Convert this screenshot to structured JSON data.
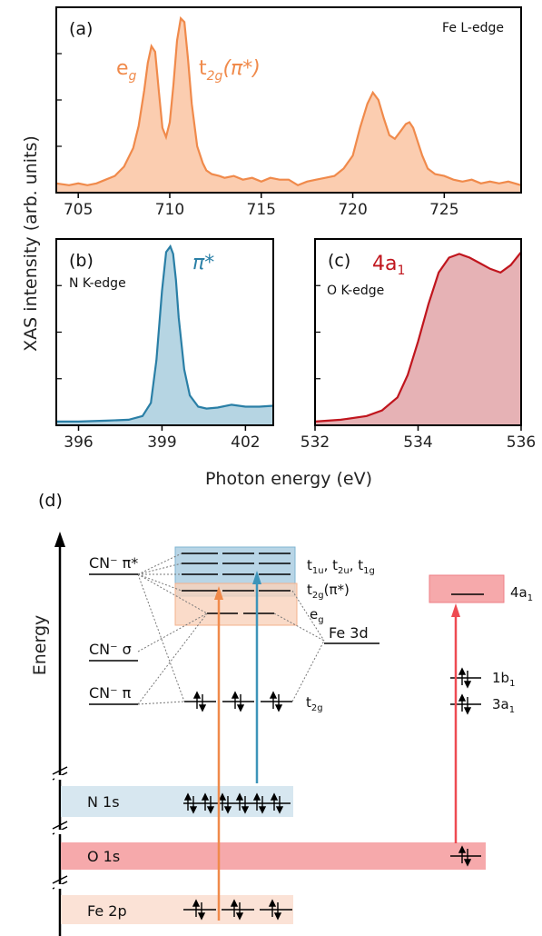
{
  "chart_data": [
    {
      "type": "line",
      "panel_label": "(a)",
      "edge_label": "Fe L-edge",
      "xlim": [
        703.8,
        729.2
      ],
      "ylim": [
        0,
        1.0
      ],
      "xticks": [
        705,
        710,
        715,
        720,
        725
      ],
      "color": "#f08a4b",
      "fill": "#fbcdb0",
      "peak_labels": [
        {
          "text": "e",
          "sub": "g",
          "suffix": ""
        },
        {
          "text": "t",
          "sub": "2g",
          "suffix": "(π*)"
        }
      ],
      "series": [
        {
          "x": [
            703.8,
            704.5,
            705,
            705.5,
            706,
            706.5,
            707,
            707.5,
            708,
            708.3,
            708.6,
            708.8,
            709,
            709.2,
            709.4,
            709.6,
            709.8,
            710,
            710.2,
            710.4,
            710.6,
            710.8,
            711,
            711.2,
            711.5,
            711.8,
            712,
            712.3,
            712.7,
            713,
            713.5,
            714,
            714.5,
            715,
            715.5,
            716,
            716.5,
            717,
            717.5,
            718,
            718.5,
            719,
            719.5,
            720,
            720.4,
            720.8,
            721.1,
            721.4,
            721.7,
            722,
            722.3,
            722.6,
            722.9,
            723.1,
            723.3,
            723.5,
            723.8,
            724.1,
            724.5,
            725,
            725.5,
            726,
            726.5,
            727,
            727.5,
            728,
            728.5,
            729.2
          ],
          "y": [
            0.05,
            0.04,
            0.05,
            0.04,
            0.05,
            0.07,
            0.09,
            0.14,
            0.24,
            0.36,
            0.55,
            0.7,
            0.79,
            0.76,
            0.55,
            0.35,
            0.3,
            0.38,
            0.58,
            0.82,
            0.94,
            0.92,
            0.72,
            0.48,
            0.25,
            0.16,
            0.12,
            0.1,
            0.09,
            0.08,
            0.09,
            0.07,
            0.08,
            0.06,
            0.08,
            0.07,
            0.07,
            0.04,
            0.06,
            0.07,
            0.08,
            0.09,
            0.13,
            0.2,
            0.35,
            0.48,
            0.54,
            0.5,
            0.4,
            0.31,
            0.29,
            0.33,
            0.37,
            0.38,
            0.35,
            0.29,
            0.2,
            0.13,
            0.1,
            0.09,
            0.07,
            0.06,
            0.07,
            0.05,
            0.06,
            0.05,
            0.06,
            0.04
          ]
        }
      ]
    },
    {
      "type": "line",
      "panel_label": "(b)",
      "edge_label": "N K-edge",
      "peak_label": "π*",
      "xlim": [
        395.2,
        403.0
      ],
      "ylim": [
        0,
        1.0
      ],
      "xticks": [
        396,
        399,
        402
      ],
      "color": "#2a7fa6",
      "fill": "#b6d5e3",
      "series": [
        {
          "x": [
            395.2,
            396,
            397,
            397.8,
            398.3,
            398.6,
            398.8,
            399.0,
            399.15,
            399.3,
            399.4,
            399.5,
            399.6,
            399.8,
            400.0,
            400.3,
            400.6,
            401.0,
            401.5,
            402.0,
            402.5,
            403.0
          ],
          "y": [
            0.02,
            0.02,
            0.025,
            0.03,
            0.05,
            0.12,
            0.35,
            0.72,
            0.93,
            0.96,
            0.92,
            0.78,
            0.58,
            0.3,
            0.16,
            0.1,
            0.09,
            0.095,
            0.11,
            0.1,
            0.1,
            0.105
          ]
        }
      ]
    },
    {
      "type": "line",
      "panel_label": "(c)",
      "edge_label": "O K-edge",
      "peak_label": "4a",
      "peak_label_sub": "1",
      "xlim": [
        532,
        536
      ],
      "ylim": [
        0,
        1.0
      ],
      "xticks": [
        532,
        534,
        536
      ],
      "color": "#c0151d",
      "fill": "#e6b2b5",
      "series": [
        {
          "x": [
            532,
            532.5,
            533,
            533.3,
            533.6,
            533.8,
            534.0,
            534.2,
            534.4,
            534.6,
            534.8,
            535.0,
            535.2,
            535.4,
            535.6,
            535.8,
            536.0
          ],
          "y": [
            0.02,
            0.03,
            0.05,
            0.08,
            0.15,
            0.27,
            0.45,
            0.65,
            0.82,
            0.9,
            0.92,
            0.9,
            0.87,
            0.84,
            0.82,
            0.86,
            0.93
          ]
        }
      ]
    }
  ],
  "axes": {
    "ylabel": "XAS intensity (arb. units)",
    "xlabel": "Photon energy (eV)"
  },
  "diagram": {
    "panel_label": "(d)",
    "axis_label": "Energy",
    "cn_pi_star": "CN⁻ π*",
    "cn_sigma": "CN⁻ σ",
    "cn_pi": "CN⁻ π",
    "fe3d": "Fe 3d",
    "t1u": "t",
    "t1u_sub": "1u",
    "t2u": "t",
    "t2u_sub": "2u",
    "t1g": "t",
    "t1g_sub": "1g",
    "t2g_pi": "t",
    "t2g_pi_sub": "2g",
    "t2g_pi_suffix": "(π*)",
    "eg": "e",
    "eg_sub": "g",
    "t2g": "t",
    "t2g_sub": "2g",
    "a4": "4a",
    "a4_sub": "1",
    "b1": "1b",
    "b1_sub": "1",
    "a3": "3a",
    "a3_sub": "1",
    "n1s": "N 1s",
    "o1s": "O 1s",
    "fe2p": "Fe 2p",
    "colors": {
      "n1s_band": "#d7e7f0",
      "o1s_band": "#f6a9ab",
      "fe2p_band": "#fbe2d6",
      "orange": "#f08a4b",
      "blue": "#3d94b9",
      "red": "#ee4b52"
    }
  }
}
